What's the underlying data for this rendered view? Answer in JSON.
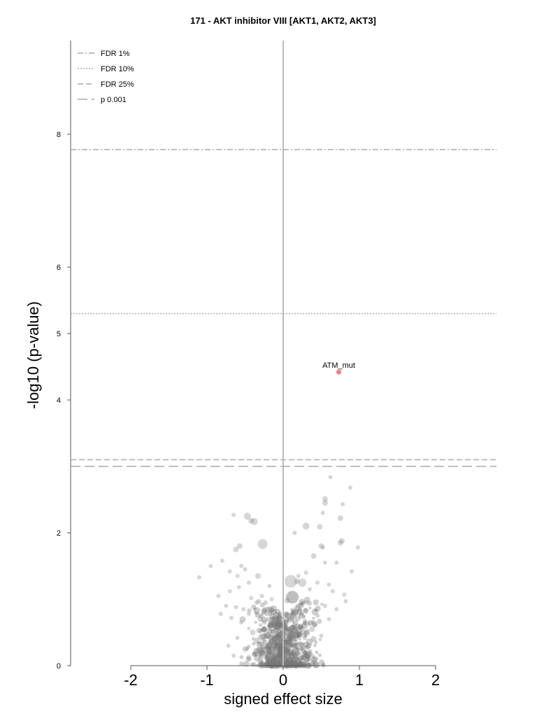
{
  "chart_data": {
    "type": "scatter",
    "title": "171 - AKT inhibitor VIII [AKT1, AKT2, AKT3]",
    "xlabel": "signed effect size",
    "ylabel": "-log10 (p-value)",
    "xlim": [
      -2.8,
      2.8
    ],
    "ylim": [
      0,
      9.4
    ],
    "x_ticks": [
      -2,
      -1,
      0,
      1,
      2
    ],
    "x_tick_labels": [
      "-2",
      "-1",
      "0",
      "1",
      "2"
    ],
    "y_ticks": [
      0,
      2,
      4,
      5,
      6,
      8
    ],
    "y_tick_labels": [
      "0",
      "2",
      "4",
      "5",
      "6",
      "8"
    ],
    "grid": false,
    "legend_position": "top-left",
    "thresholds": [
      {
        "name": "FDR 1%",
        "y": 7.77,
        "style": "dashdot"
      },
      {
        "name": "FDR 10%",
        "y": 5.3,
        "style": "dotted"
      },
      {
        "name": "FDR 25%",
        "y": 3.1,
        "style": "dashed"
      },
      {
        "name": "p 0.001",
        "y": 3.0,
        "style": "longdash"
      }
    ],
    "highlighted": [
      {
        "label": "ATM_mut",
        "x": 0.73,
        "y": 4.42,
        "color": "#f08080"
      }
    ],
    "background_color": "#777777",
    "points": [
      [
        0.62,
        2.84,
        2
      ],
      [
        0.88,
        2.68,
        2
      ],
      [
        0.55,
        2.51,
        3
      ],
      [
        0.55,
        2.45,
        3
      ],
      [
        0.78,
        2.43,
        2
      ],
      [
        0.52,
        2.3,
        2
      ],
      [
        0.75,
        2.22,
        3
      ],
      [
        0.48,
        2.09,
        3
      ],
      [
        0.3,
        2.1,
        4
      ],
      [
        0.15,
        2.0,
        2
      ],
      [
        0.77,
        1.88,
        3
      ],
      [
        0.75,
        1.85,
        3
      ],
      [
        0.98,
        1.78,
        2
      ],
      [
        0.5,
        1.8,
        3
      ],
      [
        0.52,
        1.78,
        2
      ],
      [
        0.4,
        1.65,
        3
      ],
      [
        0.55,
        1.55,
        2
      ],
      [
        0.7,
        1.55,
        2
      ],
      [
        0.9,
        1.42,
        2
      ],
      [
        0.3,
        1.4,
        2
      ],
      [
        0.2,
        1.35,
        2
      ],
      [
        0.18,
        1.27,
        3
      ],
      [
        0.1,
        1.27,
        8
      ],
      [
        0.25,
        1.25,
        5
      ],
      [
        0.45,
        1.25,
        2
      ],
      [
        0.6,
        1.22,
        2
      ],
      [
        0.35,
        1.15,
        2
      ],
      [
        0.65,
        1.12,
        2
      ],
      [
        0.8,
        1.07,
        2
      ],
      [
        0.12,
        1.03,
        8
      ],
      [
        0.05,
        0.98,
        3
      ],
      [
        0.82,
        0.97,
        2
      ],
      [
        0.3,
        0.95,
        2
      ],
      [
        0.55,
        0.9,
        2
      ],
      [
        0.7,
        0.85,
        2
      ],
      [
        0.2,
        0.9,
        3
      ],
      [
        0.45,
        0.75,
        2
      ],
      [
        0.6,
        0.7,
        2
      ],
      [
        0.38,
        0.55,
        3
      ],
      [
        0.5,
        0.45,
        2
      ],
      [
        -0.47,
        2.25,
        4
      ],
      [
        -0.65,
        2.27,
        2
      ],
      [
        -0.42,
        2.18,
        3
      ],
      [
        -0.38,
        2.17,
        4
      ],
      [
        -0.27,
        1.83,
        6
      ],
      [
        -0.57,
        1.8,
        3
      ],
      [
        -0.62,
        1.75,
        3
      ],
      [
        -0.8,
        1.58,
        2
      ],
      [
        -0.95,
        1.5,
        2
      ],
      [
        -0.55,
        1.5,
        2
      ],
      [
        -0.5,
        1.45,
        2
      ],
      [
        -0.7,
        1.42,
        2
      ],
      [
        -1.1,
        1.33,
        2
      ],
      [
        -0.6,
        1.35,
        2
      ],
      [
        -0.33,
        1.35,
        3
      ],
      [
        -0.45,
        1.25,
        2
      ],
      [
        -0.18,
        1.2,
        2
      ],
      [
        -0.58,
        1.18,
        2
      ],
      [
        -0.7,
        1.12,
        2
      ],
      [
        -0.28,
        1.05,
        2
      ],
      [
        -0.85,
        1.05,
        2
      ],
      [
        -0.42,
        1.02,
        2
      ],
      [
        -0.15,
        1.0,
        2
      ],
      [
        -0.35,
        0.95,
        2
      ],
      [
        -0.75,
        0.9,
        2
      ],
      [
        -0.62,
        0.88,
        2
      ],
      [
        -0.52,
        0.85,
        2
      ],
      [
        -0.2,
        0.85,
        3
      ],
      [
        -0.82,
        0.78,
        2
      ],
      [
        -0.45,
        0.78,
        2
      ],
      [
        -0.68,
        0.72,
        2
      ],
      [
        -0.3,
        0.7,
        3
      ],
      [
        -0.55,
        0.65,
        2
      ],
      [
        -0.15,
        0.62,
        3
      ],
      [
        -0.25,
        0.55,
        3
      ],
      [
        -0.4,
        0.5,
        3
      ],
      [
        -0.6,
        0.42,
        2
      ],
      [
        -0.35,
        0.38,
        3
      ],
      [
        -0.72,
        0.3,
        2
      ],
      [
        -0.5,
        0.25,
        3
      ],
      [
        -0.65,
        0.15,
        2
      ],
      [
        -0.45,
        0.12,
        3
      ],
      [
        -0.3,
        0.08,
        3
      ],
      [
        -0.22,
        0.02,
        3
      ]
    ]
  }
}
